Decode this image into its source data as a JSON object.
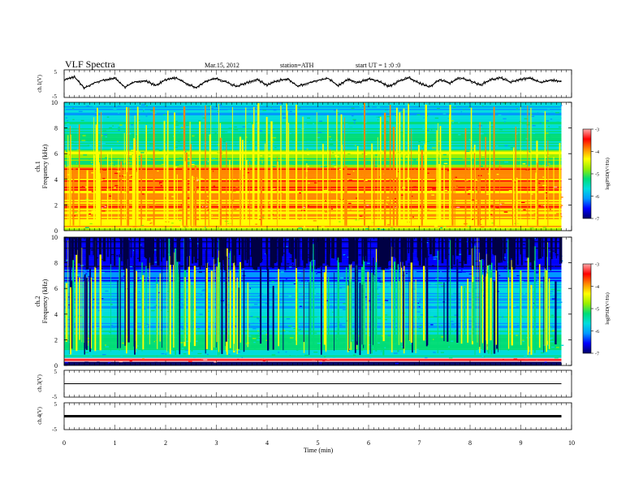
{
  "header": {
    "title": "VLF Spectra",
    "date": "Mar.15, 2012",
    "station": "station=ATH",
    "start": "start UT = 1 :0 :0"
  },
  "chart_data": [
    {
      "type": "line",
      "panel": "ch1-waveform",
      "ylabel": "ch.1(V)",
      "ylim": [
        -5,
        5
      ],
      "ytick_labels": [
        "5",
        "-5"
      ],
      "xlim": [
        0,
        10
      ],
      "x_end": 9.8,
      "series": [
        {
          "x": [
            0,
            0.2,
            0.4,
            0.6,
            0.8,
            1.0,
            1.2,
            1.4,
            1.6,
            1.8,
            2.0,
            2.2,
            2.4,
            2.6,
            2.8,
            3.0,
            3.2,
            3.4,
            3.6,
            3.8,
            4.0,
            4.2,
            4.4,
            4.6,
            4.8,
            5.0,
            5.2,
            5.4,
            5.6,
            5.8,
            6.0,
            6.2,
            6.4,
            6.6,
            6.8,
            7.0,
            7.2,
            7.4,
            7.6,
            7.8,
            8.0,
            8.2,
            8.4,
            8.6,
            8.8,
            9.0,
            9.2,
            9.4,
            9.6,
            9.8
          ],
          "values": [
            1.6,
            2.8,
            -1.8,
            0.4,
            1.6,
            2.2,
            -1.4,
            0.8,
            1.2,
            -0.8,
            1.6,
            2.4,
            0.2,
            -1.6,
            1.0,
            2.2,
            0.6,
            -1.2,
            0.4,
            1.8,
            -0.6,
            1.2,
            2.0,
            -1.0,
            0.2,
            1.4,
            2.2,
            -0.8,
            1.8,
            0.4,
            2.0,
            1.0,
            -1.2,
            1.0,
            2.4,
            0.2,
            -1.4,
            1.6,
            0.2,
            2.4,
            1.2,
            -0.6,
            1.6,
            2.4,
            0.6,
            1.8,
            2.2,
            0.4,
            1.6,
            0.8
          ]
        }
      ]
    },
    {
      "type": "heatmap",
      "panel": "ch1-spectrogram",
      "ylabel": "ch.1\nFrequency (kHz)",
      "ylim": [
        0,
        10
      ],
      "yticks": [
        0,
        2,
        4,
        6,
        8,
        10
      ],
      "xlim": [
        0,
        10
      ],
      "x_end": 9.8,
      "colorbar": {
        "label": "log(PSD(V²/Hz)",
        "range": [
          -7,
          -3
        ],
        "ticks": [
          -3,
          -4,
          -5,
          -6,
          -7
        ]
      },
      "band_profile_kHz": [
        {
          "f_from": 0.0,
          "f_to": 0.3,
          "log_psd": -4.6
        },
        {
          "f_from": 0.3,
          "f_to": 0.9,
          "log_psd": -4.3
        },
        {
          "f_from": 0.9,
          "f_to": 1.7,
          "log_psd": -4.1
        },
        {
          "f_from": 1.7,
          "f_to": 2.1,
          "log_psd": -3.5
        },
        {
          "f_from": 2.1,
          "f_to": 3.2,
          "log_psd": -4.0
        },
        {
          "f_from": 3.2,
          "f_to": 4.0,
          "log_psd": -3.8
        },
        {
          "f_from": 4.0,
          "f_to": 5.0,
          "log_psd": -3.9
        },
        {
          "f_from": 5.0,
          "f_to": 5.7,
          "log_psd": -5.1
        },
        {
          "f_from": 5.7,
          "f_to": 6.3,
          "log_psd": -4.7
        },
        {
          "f_from": 6.3,
          "f_to": 7.5,
          "log_psd": -5.3
        },
        {
          "f_from": 7.5,
          "f_to": 8.7,
          "log_psd": -5.5
        },
        {
          "f_from": 8.7,
          "f_to": 10.0,
          "log_psd": -5.7
        }
      ]
    },
    {
      "type": "heatmap",
      "panel": "ch2-spectrogram",
      "ylabel": "ch.2\nFrequency (kHz)",
      "ylim": [
        0,
        10
      ],
      "yticks": [
        0,
        2,
        4,
        6,
        8,
        10
      ],
      "xlim": [
        0,
        10
      ],
      "x_end": 9.8,
      "colorbar": {
        "label": "log(PSD(V²/Hz)",
        "range": [
          -7,
          -3
        ],
        "ticks": [
          -3,
          -4,
          -5,
          -6,
          -7
        ]
      },
      "band_profile_kHz": [
        {
          "f_from": 0.0,
          "f_to": 0.3,
          "log_psd": -7.0
        },
        {
          "f_from": 0.3,
          "f_to": 0.6,
          "log_psd": -3.2
        },
        {
          "f_from": 0.6,
          "f_to": 1.2,
          "log_psd": -5.6
        },
        {
          "f_from": 1.2,
          "f_to": 2.8,
          "log_psd": -5.3
        },
        {
          "f_from": 2.8,
          "f_to": 3.6,
          "log_psd": -5.8
        },
        {
          "f_from": 3.6,
          "f_to": 4.5,
          "log_psd": -5.6
        },
        {
          "f_from": 4.5,
          "f_to": 5.5,
          "log_psd": -6.0
        },
        {
          "f_from": 5.5,
          "f_to": 6.6,
          "log_psd": -5.8
        },
        {
          "f_from": 6.6,
          "f_to": 7.5,
          "log_psd": -6.2
        },
        {
          "f_from": 7.5,
          "f_to": 10.0,
          "log_psd": -6.6
        }
      ]
    },
    {
      "type": "line",
      "panel": "ch3-waveform",
      "ylabel": "ch.3(V)",
      "ylim": [
        -5,
        5
      ],
      "ytick_labels": [
        "5",
        "-5"
      ],
      "xlim": [
        0,
        10
      ],
      "x_end": 9.8,
      "series": [
        {
          "x": [
            0,
            9.8
          ],
          "values": [
            0,
            0
          ]
        }
      ]
    },
    {
      "type": "line",
      "panel": "ch4-waveform",
      "ylabel": "ch.4(V)",
      "ylim": [
        -5,
        5
      ],
      "ytick_labels": [
        "5",
        "-5"
      ],
      "xlim": [
        0,
        10
      ],
      "x_end": 9.8,
      "xlabel": "Time (min)",
      "xticks": [
        0,
        1,
        2,
        3,
        4,
        5,
        6,
        7,
        8,
        9,
        10
      ],
      "series": [
        {
          "x": [
            0,
            9.8
          ],
          "values": [
            0,
            0
          ]
        }
      ]
    }
  ],
  "colormap": [
    "#000066",
    "#0000ff",
    "#0099ff",
    "#00dddd",
    "#00dd77",
    "#99ee00",
    "#ffff00",
    "#ff8800",
    "#ff0000",
    "#ffaaaa",
    "#ffffff"
  ]
}
